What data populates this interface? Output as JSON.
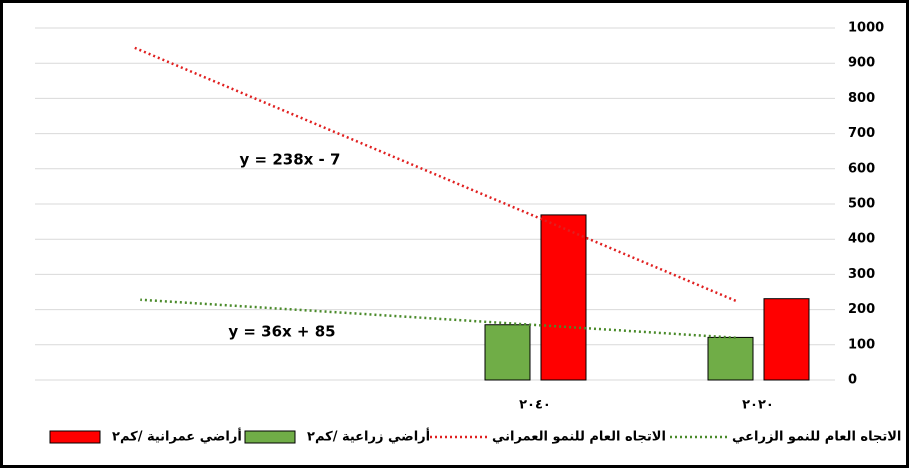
{
  "chart_data": {
    "type": "bar",
    "categories": [
      "٢٠٢٠",
      "٢٠٤٠"
    ],
    "series": [
      {
        "name": "أراضي زراعية /كم٢",
        "color": "#70ad47",
        "values": [
          121,
          157
        ]
      },
      {
        "name": "أراضي عمرانية /كم٢",
        "color": "#ff0000",
        "values": [
          231,
          469
        ]
      }
    ],
    "trendlines": [
      {
        "name": "الاتجاه العام للنمو العمراني",
        "color": "#e02020",
        "equation": "y = 238x - 7",
        "x": [
          1.1,
          3.8
        ],
        "values": [
          225,
          945
        ]
      },
      {
        "name": "الاتجاه العام للنمو الزراعي",
        "color": "#4a8a2a",
        "equation": "y = 36x + 85",
        "x": [
          1.1,
          3.77
        ],
        "values": [
          120,
          228
        ]
      }
    ],
    "ylim": [
      0,
      1000
    ],
    "yticks": [
      0,
      100,
      200,
      300,
      400,
      500,
      600,
      700,
      800,
      900,
      1000
    ],
    "grid": true,
    "axis_side": "right",
    "legend": "bottom"
  }
}
